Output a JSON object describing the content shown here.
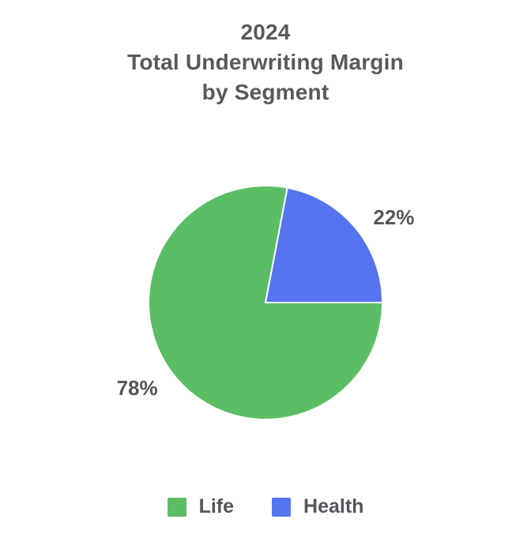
{
  "title": {
    "line1": "2024",
    "line2": "Total Underwriting Margin",
    "line3": "by Segment"
  },
  "chart_data": {
    "type": "pie",
    "title": "2024 Total Underwriting Margin by Segment",
    "labels": [
      "Life",
      "Health"
    ],
    "values": [
      78,
      22
    ],
    "unit": "percent",
    "value_labels": [
      "78%",
      "22%"
    ],
    "colors": [
      "#5CBE64",
      "#5673F0"
    ],
    "slice_border_color": "#ffffff",
    "text_color": "#545659",
    "title_color": "#58595b",
    "legend_position": "bottom",
    "start_angle": 90,
    "direction": "clockwise"
  }
}
